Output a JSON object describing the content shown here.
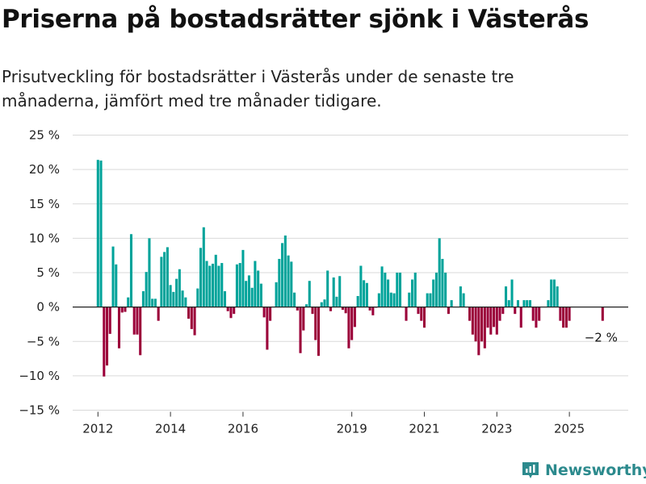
{
  "title": "Priserna på bostadsrätter sjönk i Västerås",
  "subtitle": "Prisutveckling för bostadsrätter i Västerås under de senaste tre månaderna, jämfört med tre månader tidigare.",
  "brand": {
    "name": "Newsworthy",
    "color": "#2c8a8d"
  },
  "colors": {
    "positive": "#00a39a",
    "negative": "#9b0039"
  },
  "chart_data": {
    "type": "bar",
    "yaxis": {
      "min": -15,
      "max": 25,
      "ticks": [
        25,
        20,
        15,
        10,
        5,
        0,
        -5,
        -10,
        -15
      ],
      "tick_labels": [
        "25 %",
        "20 %",
        "15 %",
        "10 %",
        "5 %",
        "0 %",
        "−5 %",
        "−10 %",
        "−15 %"
      ]
    },
    "xaxis": {
      "start": 2012,
      "end": 2025.917,
      "ticks": [
        2012,
        2014,
        2016,
        2019,
        2021,
        2023,
        2025
      ],
      "tick_labels": [
        "2012",
        "2014",
        "2016",
        "2019",
        "2021",
        "2023",
        "2025"
      ]
    },
    "grid": true,
    "annotation": {
      "text": "−2 %",
      "x": 2025.917,
      "y": -2
    },
    "x": [
      2012.0,
      2012.083,
      2012.167,
      2012.25,
      2012.333,
      2012.417,
      2012.5,
      2012.583,
      2012.667,
      2012.75,
      2012.833,
      2012.917,
      2013.0,
      2013.083,
      2013.167,
      2013.25,
      2013.333,
      2013.417,
      2013.5,
      2013.583,
      2013.667,
      2013.75,
      2013.833,
      2013.917,
      2014.0,
      2014.083,
      2014.167,
      2014.25,
      2014.333,
      2014.417,
      2014.5,
      2014.583,
      2014.667,
      2014.75,
      2014.833,
      2014.917,
      2015.0,
      2015.083,
      2015.167,
      2015.25,
      2015.333,
      2015.417,
      2015.5,
      2015.583,
      2015.667,
      2015.75,
      2015.833,
      2015.917,
      2016.0,
      2016.083,
      2016.167,
      2016.25,
      2016.333,
      2016.417,
      2016.5,
      2016.583,
      2016.667,
      2016.75,
      2016.833,
      2016.917,
      2017.0,
      2017.083,
      2017.167,
      2017.25,
      2017.333,
      2017.417,
      2017.5,
      2017.583,
      2017.667,
      2017.75,
      2017.833,
      2017.917,
      2018.0,
      2018.083,
      2018.167,
      2018.25,
      2018.333,
      2018.417,
      2018.5,
      2018.583,
      2018.667,
      2018.75,
      2018.833,
      2018.917,
      2019.0,
      2019.083,
      2019.167,
      2019.25,
      2019.333,
      2019.417,
      2019.5,
      2019.583,
      2019.667,
      2019.75,
      2019.833,
      2019.917,
      2020.0,
      2020.083,
      2020.167,
      2020.25,
      2020.333,
      2020.417,
      2020.5,
      2020.583,
      2020.667,
      2020.75,
      2020.833,
      2020.917,
      2021.0,
      2021.083,
      2021.167,
      2021.25,
      2021.333,
      2021.417,
      2021.5,
      2021.583,
      2021.667,
      2021.75,
      2021.833,
      2021.917,
      2022.0,
      2022.083,
      2022.167,
      2022.25,
      2022.333,
      2022.417,
      2022.5,
      2022.583,
      2022.667,
      2022.75,
      2022.833,
      2022.917,
      2023.0,
      2023.083,
      2023.167,
      2023.25,
      2023.333,
      2023.417,
      2023.5,
      2023.583,
      2023.667,
      2023.75,
      2023.833,
      2023.917,
      2024.0,
      2024.083,
      2024.167,
      2024.25,
      2024.333,
      2024.417,
      2024.5,
      2024.583,
      2024.667,
      2024.75,
      2024.833,
      2024.917,
      2025.0,
      2025.083,
      2025.167,
      2025.25,
      2025.333,
      2025.417,
      2025.5,
      2025.583,
      2025.667,
      2025.75,
      2025.833,
      2025.917
    ],
    "values": [
      21.4,
      21.3,
      -10.1,
      -8.5,
      -3.9,
      8.8,
      6.2,
      -6.0,
      -0.8,
      -0.7,
      1.4,
      10.6,
      -4.0,
      -4.0,
      -7.0,
      2.3,
      5.1,
      10.0,
      1.2,
      1.2,
      -2.0,
      7.3,
      8.0,
      8.7,
      3.2,
      2.2,
      4.1,
      5.5,
      2.4,
      1.4,
      -1.7,
      -3.2,
      -4.1,
      2.7,
      8.6,
      11.6,
      6.7,
      6.0,
      6.3,
      7.6,
      6.0,
      6.4,
      2.3,
      -0.6,
      -1.6,
      -1.0,
      6.2,
      6.4,
      8.3,
      3.8,
      4.6,
      2.8,
      6.7,
      5.3,
      3.4,
      -1.5,
      -6.2,
      -2.0,
      0.0,
      3.6,
      7.0,
      9.3,
      10.4,
      7.5,
      6.6,
      2.1,
      -0.5,
      -6.7,
      -3.4,
      0.4,
      3.8,
      -1.0,
      -4.8,
      -7.1,
      0.7,
      1.1,
      5.3,
      -0.6,
      4.3,
      1.5,
      4.5,
      -0.4,
      -0.9,
      -6.0,
      -4.8,
      -2.9,
      1.6,
      6.0,
      3.9,
      3.5,
      -0.5,
      -1.2,
      -0.1,
      2.0,
      5.9,
      5.0,
      4.0,
      2.1,
      2.0,
      5.0,
      5.0,
      0.0,
      -2.0,
      2.1,
      4.0,
      5.0,
      -1.0,
      -2.0,
      -3.0,
      2.0,
      2.0,
      4.0,
      5.0,
      10.0,
      7.0,
      5.0,
      -1.0,
      1.0,
      0.0,
      0.0,
      3.0,
      2.0,
      0.0,
      -2.0,
      -4.0,
      -5.0,
      -7.0,
      -5.0,
      -6.0,
      -3.0,
      -4.0,
      -2.9,
      -4.0,
      -2.0,
      -1.0,
      3.0,
      1.0,
      4.0,
      -1.0,
      1.0,
      -3.0,
      1.0,
      1.0,
      1.0,
      -2.0,
      -3.0,
      -2.0,
      0.0,
      0.0,
      1.0,
      4.0,
      4.0,
      3.0,
      -2.0,
      -3.0,
      -3.0,
      -2.0,
      0.0,
      0.0,
      0.0,
      0.0,
      0.0,
      0.0,
      0.0,
      0.0,
      0.0,
      0.0,
      -2.0
    ]
  }
}
